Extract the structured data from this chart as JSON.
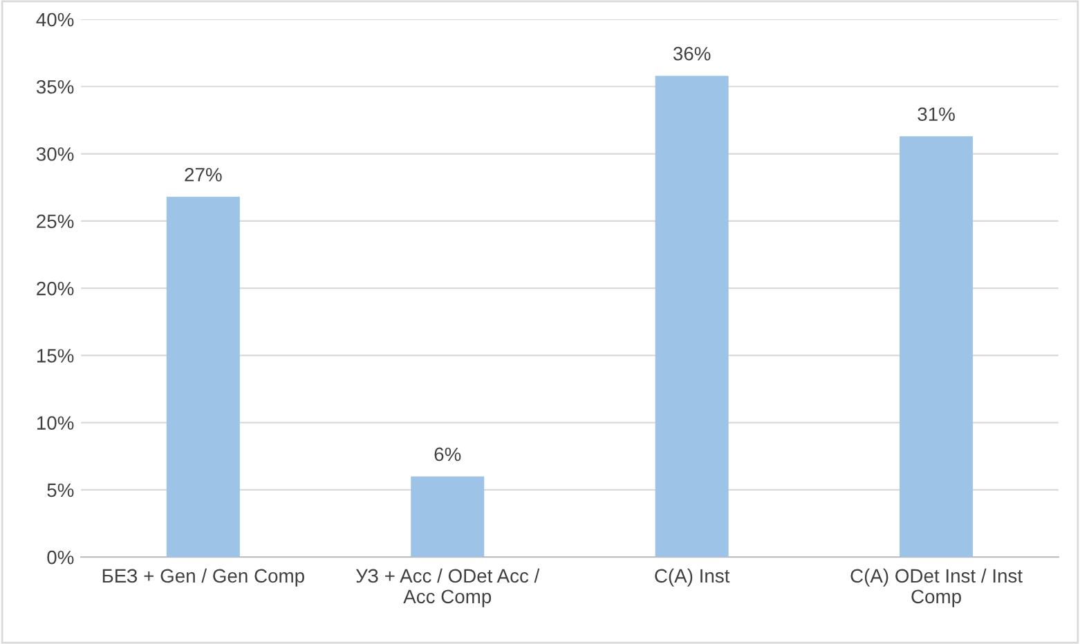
{
  "chart_data": {
    "type": "bar",
    "categories": [
      "БЕЗ + Gen / Gen Comp",
      "УЗ + Acc / ODet Acc /\nAcc Comp",
      "C(A) Inst",
      "C(A) ODet Inst / Inst\nComp"
    ],
    "values": [
      26.8,
      6.0,
      35.8,
      31.3
    ],
    "value_labels": [
      "27%",
      "6%",
      "36%",
      "31%"
    ],
    "color": "#9dc3e6",
    "ylim": [
      0,
      40
    ],
    "yticks": [
      {
        "value": 0,
        "label": "0%"
      },
      {
        "value": 5,
        "label": "5%"
      },
      {
        "value": 10,
        "label": "10%"
      },
      {
        "value": 15,
        "label": "15%"
      },
      {
        "value": 20,
        "label": "20%"
      },
      {
        "value": 25,
        "label": "25%"
      },
      {
        "value": 30,
        "label": "30%"
      },
      {
        "value": 35,
        "label": "35%"
      },
      {
        "value": 40,
        "label": "40%"
      }
    ],
    "grid": "y",
    "legend": false
  }
}
